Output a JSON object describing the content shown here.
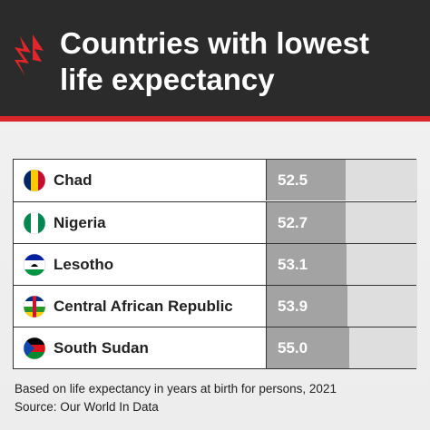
{
  "chart_data": {
    "type": "bar",
    "orientation": "horizontal",
    "title": "Countries with lowest life expectancy",
    "categories": [
      "Chad",
      "Nigeria",
      "Lesotho",
      "Central African Republic",
      "South Sudan"
    ],
    "values": [
      52.5,
      52.7,
      53.1,
      53.9,
      55.0
    ],
    "value_labels": [
      "52.5",
      "52.7",
      "53.1",
      "53.9",
      "55.0"
    ],
    "xlim": [
      0,
      100
    ],
    "color": "#a3a3a3",
    "note": "Based on life expectancy in years at birth for persons, 2021",
    "source": "Source: Our World In Data"
  }
}
